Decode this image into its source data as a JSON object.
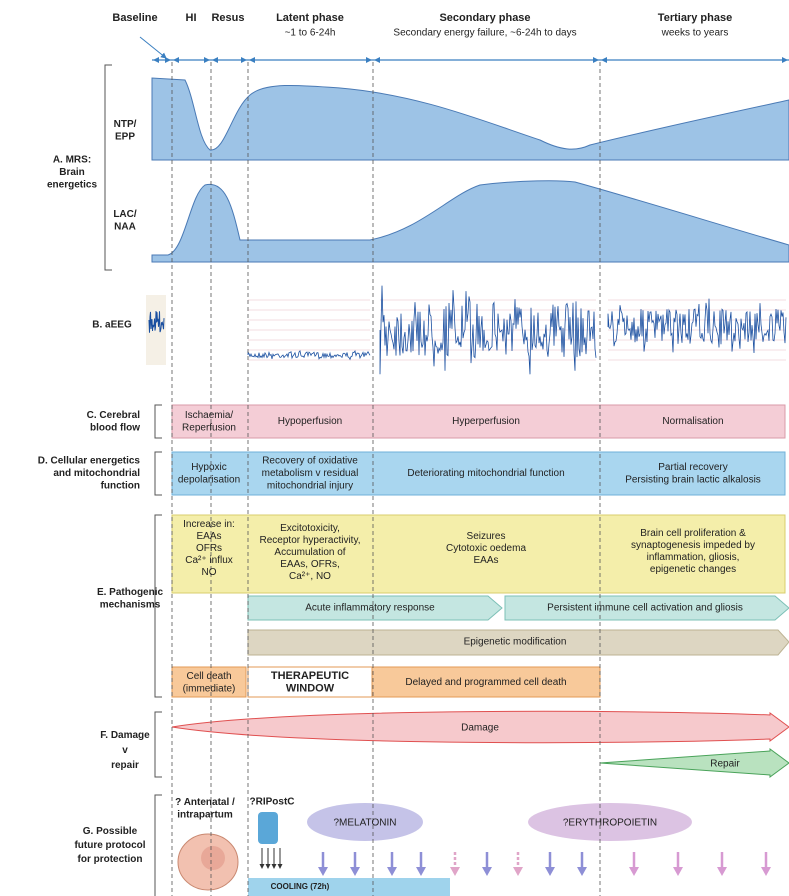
{
  "header": {
    "phases": [
      {
        "title": "Baseline"
      },
      {
        "title": "HI"
      },
      {
        "title": "Resus"
      },
      {
        "title": "Latent phase",
        "subtitle": "~1 to 6-24h"
      },
      {
        "title": "Secondary phase",
        "subtitle": "Secondary energy failure, ~6-24h to days"
      },
      {
        "title": "Tertiary phase",
        "subtitle": "weeks to years"
      }
    ]
  },
  "mrs": {
    "label": [
      "A. MRS:",
      "Brain",
      "energetics"
    ],
    "top_label": [
      "NTP/",
      "EPP"
    ],
    "bottom_label": [
      "LAC/",
      "NAA"
    ]
  },
  "aeeg": {
    "label": "B. aEEG"
  },
  "blood_flow": {
    "label": [
      "C. Cerebral",
      "blood flow"
    ],
    "stages": [
      [
        "Ischaemia/",
        "Reperfusion"
      ],
      [
        "Hypoperfusion"
      ],
      [
        "Hyperperfusion"
      ],
      [
        "Normalisation"
      ]
    ]
  },
  "energetics": {
    "label": [
      "D. Cellular energetics",
      "and mitochondrial",
      "function"
    ],
    "stages": [
      [
        "Hypoxic",
        "depolarisation"
      ],
      [
        "Recovery of oxidative",
        "metabolism v residual",
        "mitochondrial injury"
      ],
      [
        "Deteriorating mitochondrial function"
      ],
      [
        "Partial recovery",
        "Persisting brain lactic alkalosis"
      ]
    ]
  },
  "pathogenic": {
    "label": [
      "E. Pathogenic",
      "mechanisms"
    ],
    "stages": [
      [
        "Increase in:",
        "EAAs",
        "OFRs",
        "Ca²⁺ influx",
        "NO"
      ],
      [
        "Excitotoxicity,",
        "Receptor hyperactivity,",
        "Accumulation of",
        "EAAs, OFRs,",
        "Ca²⁺, NO"
      ],
      [
        "Seizures",
        "Cytotoxic oedema",
        "EAAs"
      ],
      [
        "Brain cell proliferation &",
        "synaptogenesis impeded by",
        "inflammation, gliosis,",
        "epigenetic changes"
      ]
    ],
    "inflammation": [
      "Acute inflammatory response",
      "Persistent immune cell activation and gliosis"
    ],
    "epigenetic": "Epigenetic modification",
    "cell_death": [
      [
        "Cell death",
        "(immediate)"
      ],
      [
        "THERAPEUTIC",
        "WINDOW"
      ],
      [
        "Delayed and programmed cell death"
      ]
    ]
  },
  "damage_repair": {
    "label": [
      "F. Damage",
      "v",
      "repair"
    ],
    "damage": "Damage",
    "repair": "Repair"
  },
  "protection": {
    "label": [
      "G. Possible",
      "future protocol",
      "for protection"
    ],
    "antenatal": [
      "? Antenatal /",
      "intrapartum"
    ],
    "ripostc": "?RIPostC",
    "melatonin": "?MELATONIN",
    "erythropoietin": "?ERYTHROPOIETIN",
    "cooling": "COOLING (72h)"
  }
}
